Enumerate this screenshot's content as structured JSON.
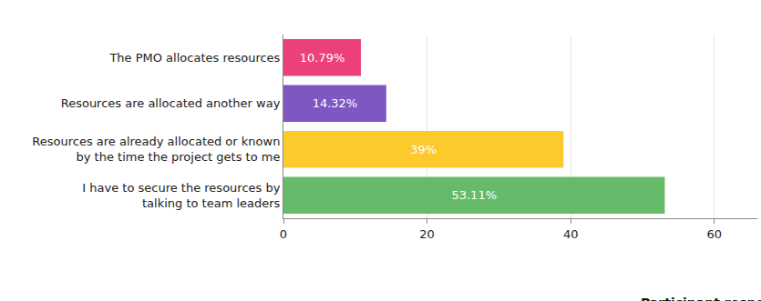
{
  "chart_data": {
    "type": "bar",
    "orientation": "horizontal",
    "x_label": "Participant responses",
    "categories": [
      "The PMO allocates resources",
      "Resources are allocated another way",
      "Resources are already allocated or known by the time the project gets to me",
      "I have to secure the resources by talking to team leaders"
    ],
    "values": [
      10.79,
      14.32,
      39,
      53.11
    ],
    "value_labels": [
      "10.79%",
      "14.32%",
      "39%",
      "53.11%"
    ],
    "colors": [
      "#ec407a",
      "#7e57c2",
      "#fdca2e",
      "#66bb6a"
    ],
    "xlim": [
      0,
      66
    ],
    "xticks": [
      0,
      20,
      40,
      60
    ],
    "grid": true,
    "data_labels": true
  }
}
